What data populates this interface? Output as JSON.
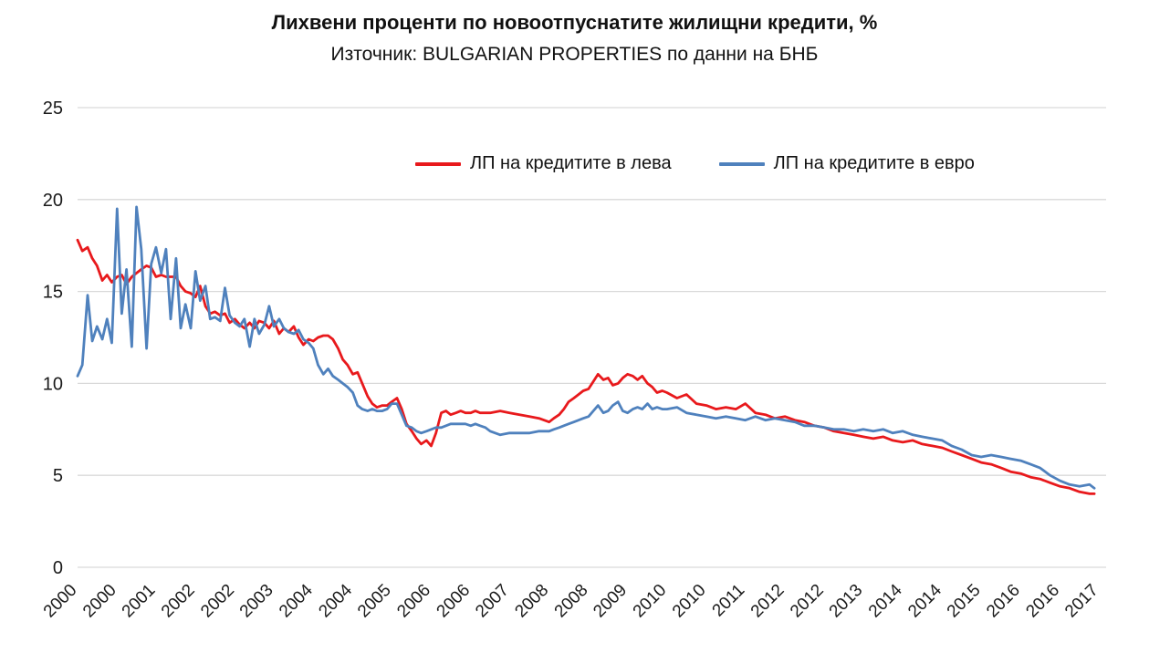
{
  "chart_data": {
    "type": "line",
    "title": "Лихвени проценти по новоотпуснатите жилищни кредити, %",
    "subtitle": "Източник: BULGARIAN PROPERTIES по данни на БНБ",
    "xlabel": "",
    "ylabel": "",
    "xlim": [
      2000.0,
      2017.45
    ],
    "ylim": [
      0,
      25
    ],
    "y_ticks": [
      0,
      5,
      10,
      15,
      20,
      25
    ],
    "x_ticks": {
      "positions": [
        2000.0,
        2000.67,
        2001.33,
        2002.0,
        2002.67,
        2003.33,
        2004.0,
        2004.67,
        2005.33,
        2006.0,
        2006.67,
        2007.33,
        2008.0,
        2008.67,
        2009.33,
        2010.0,
        2010.67,
        2011.33,
        2012.0,
        2012.67,
        2013.33,
        2014.0,
        2014.67,
        2015.33,
        2016.0,
        2016.67,
        2017.33
      ],
      "labels": [
        "2000",
        "2000",
        "2001",
        "2002",
        "2002",
        "2003",
        "2004",
        "2004",
        "2005",
        "2006",
        "2006",
        "2007",
        "2008",
        "2008",
        "2009",
        "2010",
        "2010",
        "2011",
        "2012",
        "2012",
        "2013",
        "2014",
        "2014",
        "2015",
        "2016",
        "2016",
        "2017"
      ]
    },
    "grid": true,
    "grid_color": "#d9d9d9",
    "axis_text_color": "#1a1a1a",
    "legend_position": "top-inside",
    "x": [
      2000.0,
      2000.08,
      2000.17,
      2000.25,
      2000.33,
      2000.42,
      2000.5,
      2000.58,
      2000.67,
      2000.75,
      2000.83,
      2000.92,
      2001.0,
      2001.08,
      2001.17,
      2001.25,
      2001.33,
      2001.42,
      2001.5,
      2001.58,
      2001.67,
      2001.75,
      2001.83,
      2001.92,
      2002.0,
      2002.08,
      2002.17,
      2002.25,
      2002.33,
      2002.42,
      2002.5,
      2002.58,
      2002.67,
      2002.75,
      2002.83,
      2002.92,
      2003.0,
      2003.08,
      2003.17,
      2003.25,
      2003.33,
      2003.42,
      2003.5,
      2003.58,
      2003.67,
      2003.75,
      2003.83,
      2003.92,
      2004.0,
      2004.08,
      2004.17,
      2004.25,
      2004.33,
      2004.42,
      2004.5,
      2004.58,
      2004.67,
      2004.75,
      2004.83,
      2004.92,
      2005.0,
      2005.08,
      2005.17,
      2005.25,
      2005.33,
      2005.42,
      2005.5,
      2005.58,
      2005.67,
      2005.75,
      2005.83,
      2005.92,
      2006.0,
      2006.08,
      2006.17,
      2006.25,
      2006.33,
      2006.42,
      2006.5,
      2006.58,
      2006.67,
      2006.75,
      2006.83,
      2006.92,
      2007.0,
      2007.17,
      2007.33,
      2007.5,
      2007.67,
      2007.83,
      2008.0,
      2008.08,
      2008.17,
      2008.25,
      2008.33,
      2008.42,
      2008.5,
      2008.58,
      2008.67,
      2008.75,
      2008.83,
      2008.92,
      2009.0,
      2009.08,
      2009.17,
      2009.25,
      2009.33,
      2009.42,
      2009.5,
      2009.58,
      2009.67,
      2009.75,
      2009.83,
      2009.92,
      2010.0,
      2010.17,
      2010.33,
      2010.5,
      2010.67,
      2010.83,
      2011.0,
      2011.17,
      2011.33,
      2011.5,
      2011.67,
      2011.83,
      2012.0,
      2012.17,
      2012.33,
      2012.5,
      2012.67,
      2012.83,
      2013.0,
      2013.17,
      2013.33,
      2013.5,
      2013.67,
      2013.83,
      2014.0,
      2014.17,
      2014.33,
      2014.5,
      2014.67,
      2014.83,
      2015.0,
      2015.17,
      2015.33,
      2015.5,
      2015.67,
      2015.83,
      2016.0,
      2016.17,
      2016.33,
      2016.5,
      2016.67,
      2016.83,
      2017.0,
      2017.17,
      2017.25
    ],
    "series": [
      {
        "name": "ЛП на кредитите в лева",
        "color": "#e8191c",
        "values": [
          17.8,
          17.2,
          17.4,
          16.8,
          16.4,
          15.6,
          15.9,
          15.5,
          15.8,
          15.9,
          15.4,
          15.8,
          16.0,
          16.2,
          16.4,
          16.3,
          15.8,
          15.9,
          15.8,
          15.8,
          15.8,
          15.3,
          15.0,
          14.9,
          14.7,
          15.3,
          14.2,
          13.8,
          13.9,
          13.7,
          13.8,
          13.3,
          13.5,
          13.2,
          13.0,
          13.3,
          13.0,
          13.4,
          13.3,
          13.0,
          13.4,
          12.7,
          13.0,
          12.8,
          13.1,
          12.5,
          12.1,
          12.4,
          12.3,
          12.5,
          12.6,
          12.6,
          12.4,
          11.9,
          11.3,
          11.0,
          10.5,
          10.6,
          10.0,
          9.3,
          8.9,
          8.7,
          8.8,
          8.8,
          9.0,
          9.2,
          8.6,
          7.8,
          7.4,
          7.0,
          6.7,
          6.9,
          6.6,
          7.3,
          8.4,
          8.5,
          8.3,
          8.4,
          8.5,
          8.4,
          8.4,
          8.5,
          8.4,
          8.4,
          8.4,
          8.5,
          8.4,
          8.3,
          8.2,
          8.1,
          7.9,
          8.1,
          8.3,
          8.6,
          9.0,
          9.2,
          9.4,
          9.6,
          9.7,
          10.1,
          10.5,
          10.2,
          10.3,
          9.9,
          10.0,
          10.3,
          10.5,
          10.4,
          10.2,
          10.4,
          10.0,
          9.8,
          9.5,
          9.6,
          9.5,
          9.2,
          9.4,
          8.9,
          8.8,
          8.6,
          8.7,
          8.6,
          8.9,
          8.4,
          8.3,
          8.1,
          8.2,
          8.0,
          7.9,
          7.7,
          7.6,
          7.4,
          7.3,
          7.2,
          7.1,
          7.0,
          7.1,
          6.9,
          6.8,
          6.9,
          6.7,
          6.6,
          6.5,
          6.3,
          6.1,
          5.9,
          5.7,
          5.6,
          5.4,
          5.2,
          5.1,
          4.9,
          4.8,
          4.6,
          4.4,
          4.3,
          4.1,
          4.0,
          4.0
        ]
      },
      {
        "name": "ЛП на кредитите в евро",
        "color": "#4f81bd",
        "values": [
          10.4,
          11.0,
          14.8,
          12.3,
          13.1,
          12.4,
          13.5,
          12.2,
          19.5,
          13.8,
          16.2,
          12.0,
          19.6,
          17.3,
          11.9,
          16.5,
          17.4,
          16.0,
          17.3,
          13.5,
          16.8,
          13.0,
          14.3,
          13.0,
          16.1,
          14.5,
          15.3,
          13.5,
          13.6,
          13.4,
          15.2,
          13.7,
          13.3,
          13.1,
          13.5,
          12.0,
          13.5,
          12.7,
          13.2,
          14.2,
          13.1,
          13.5,
          13.0,
          12.8,
          12.7,
          12.9,
          12.4,
          12.2,
          11.9,
          11.0,
          10.5,
          10.8,
          10.4,
          10.2,
          10.0,
          9.8,
          9.5,
          8.8,
          8.6,
          8.5,
          8.6,
          8.5,
          8.5,
          8.6,
          8.9,
          8.9,
          8.3,
          7.7,
          7.6,
          7.4,
          7.3,
          7.4,
          7.5,
          7.6,
          7.6,
          7.7,
          7.8,
          7.8,
          7.8,
          7.8,
          7.7,
          7.8,
          7.7,
          7.6,
          7.4,
          7.2,
          7.3,
          7.3,
          7.3,
          7.4,
          7.4,
          7.5,
          7.6,
          7.7,
          7.8,
          7.9,
          8.0,
          8.1,
          8.2,
          8.5,
          8.8,
          8.4,
          8.5,
          8.8,
          9.0,
          8.5,
          8.4,
          8.6,
          8.7,
          8.6,
          8.9,
          8.6,
          8.7,
          8.6,
          8.6,
          8.7,
          8.4,
          8.3,
          8.2,
          8.1,
          8.2,
          8.1,
          8.0,
          8.2,
          8.0,
          8.1,
          8.0,
          7.9,
          7.7,
          7.7,
          7.6,
          7.5,
          7.5,
          7.4,
          7.5,
          7.4,
          7.5,
          7.3,
          7.4,
          7.2,
          7.1,
          7.0,
          6.9,
          6.6,
          6.4,
          6.1,
          6.0,
          6.1,
          6.0,
          5.9,
          5.8,
          5.6,
          5.4,
          5.0,
          4.7,
          4.5,
          4.4,
          4.5,
          4.3
        ]
      }
    ]
  }
}
